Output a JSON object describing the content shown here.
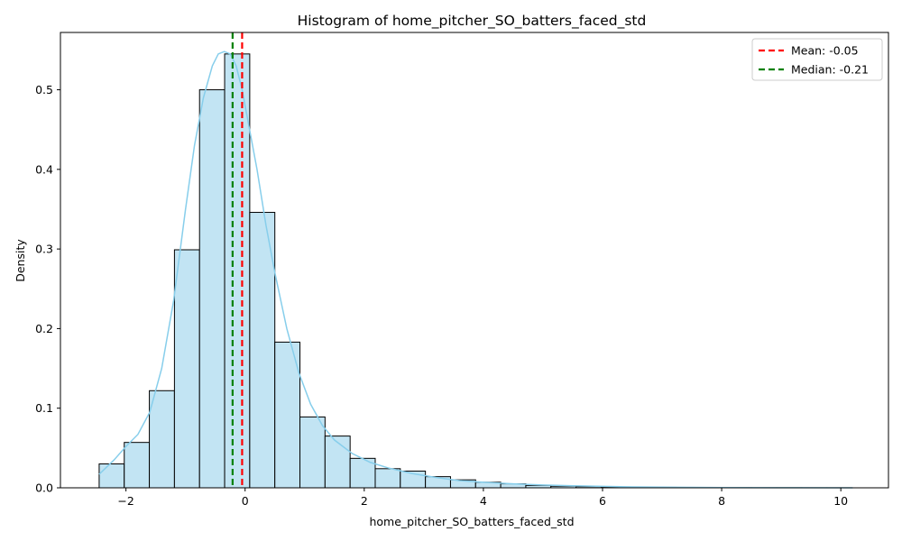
{
  "chart_data": {
    "type": "bar",
    "title": "Histogram of home_pitcher_SO_batters_faced_std",
    "xlabel": "home_pitcher_SO_batters_faced_std",
    "ylabel": "Density",
    "xlim": [
      -3.1,
      10.8
    ],
    "ylim": [
      0,
      0.572
    ],
    "xticks": [
      -2,
      0,
      2,
      4,
      6,
      8,
      10
    ],
    "xtick_labels": [
      "−2",
      "0",
      "2",
      "4",
      "6",
      "8",
      "10"
    ],
    "yticks": [
      0.0,
      0.1,
      0.2,
      0.3,
      0.4,
      0.5
    ],
    "ytick_labels": [
      "0.0",
      "0.1",
      "0.2",
      "0.3",
      "0.4",
      "0.5"
    ],
    "bins": {
      "start": -2.45,
      "width": 0.4213,
      "values": [
        0.03,
        0.057,
        0.122,
        0.299,
        0.5,
        0.545,
        0.346,
        0.183,
        0.089,
        0.065,
        0.037,
        0.024,
        0.021,
        0.014,
        0.01,
        0.007,
        0.005,
        0.003,
        0.002,
        0.0015,
        0.001,
        0.0008,
        0.0006,
        0.0004,
        0.0003,
        0.0002,
        0.0001,
        0.0001,
        5e-05,
        5e-05
      ]
    },
    "kde": {
      "x": [
        -2.45,
        -2.2,
        -2.0,
        -1.8,
        -1.6,
        -1.4,
        -1.2,
        -1.0,
        -0.85,
        -0.7,
        -0.55,
        -0.45,
        -0.35,
        -0.25,
        -0.15,
        -0.05,
        0.05,
        0.2,
        0.35,
        0.5,
        0.7,
        0.9,
        1.1,
        1.3,
        1.5,
        1.8,
        2.1,
        2.4,
        2.8,
        3.2,
        3.6,
        4.0,
        4.5,
        5.0,
        5.5,
        6.0,
        6.5,
        7.0,
        7.5,
        8.0,
        9.0,
        10.2
      ],
      "y": [
        0.017,
        0.035,
        0.052,
        0.067,
        0.095,
        0.15,
        0.235,
        0.35,
        0.43,
        0.49,
        0.53,
        0.545,
        0.548,
        0.545,
        0.53,
        0.5,
        0.46,
        0.4,
        0.33,
        0.27,
        0.2,
        0.145,
        0.105,
        0.078,
        0.06,
        0.043,
        0.032,
        0.025,
        0.018,
        0.013,
        0.009,
        0.007,
        0.005,
        0.0035,
        0.0025,
        0.0018,
        0.0012,
        0.0008,
        0.0005,
        0.0003,
        0.0001,
        0.0
      ]
    },
    "reference_lines": [
      {
        "label": "Mean: -0.05",
        "x": -0.05,
        "color": "#ff0000"
      },
      {
        "label": "Median: -0.21",
        "x": -0.21,
        "color": "#008000"
      }
    ],
    "colors": {
      "bar_fill": "#c2e4f3",
      "bar_edge": "#000000",
      "kde": "#87ceeb"
    },
    "legend_position": "top-right",
    "grid": false
  }
}
